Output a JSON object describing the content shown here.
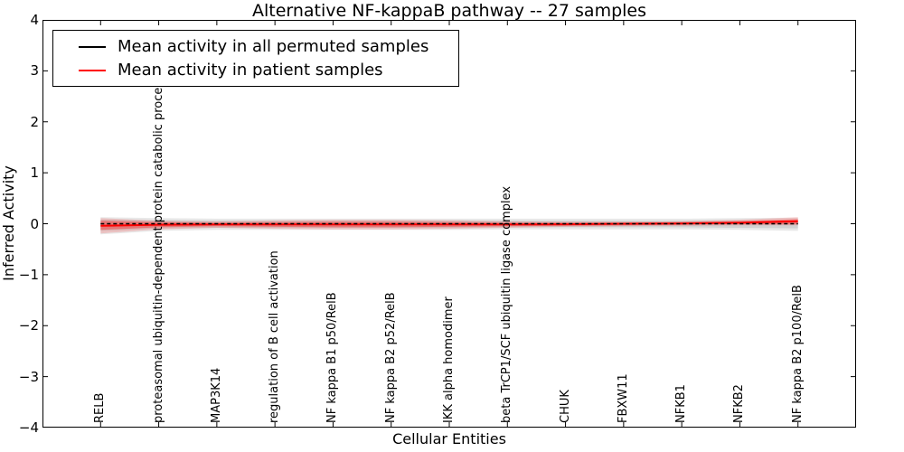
{
  "chart_data": {
    "type": "line",
    "title": "Alternative NF-kappaB pathway -- 27 samples",
    "xlabel": "Cellular Entities",
    "ylabel": "Inferred Activity",
    "ylim": [
      -4,
      4
    ],
    "grid": false,
    "tick_direction": "in",
    "yticks": [
      {
        "value": 4,
        "label": "4"
      },
      {
        "value": 3,
        "label": "3"
      },
      {
        "value": 2,
        "label": "2"
      },
      {
        "value": 1,
        "label": "1"
      },
      {
        "value": 0,
        "label": "0"
      },
      {
        "value": -1,
        "label": "−1"
      },
      {
        "value": -2,
        "label": "−2"
      },
      {
        "value": -3,
        "label": "−3"
      },
      {
        "value": -4,
        "label": "−4"
      }
    ],
    "categories": [
      "RELB",
      "proteasomal ubiquitin-dependent protein catabolic process",
      "MAP3K14",
      "regulation of B cell activation",
      "NF kappa B1 p50/RelB",
      "NF kappa B2 p52/RelB",
      "IKK alpha homodimer",
      "beta TrCP1/SCF ubiquitin ligase complex",
      "CHUK",
      "FBXW11",
      "NFKB1",
      "NFKB2",
      "NF kappa B2 p100/RelB"
    ],
    "series": [
      {
        "name": "Mean activity in all permuted samples",
        "slug": "permuted-mean-line",
        "color": "#000000",
        "line_style": "dashed",
        "values": [
          0,
          0,
          0,
          0,
          0,
          0,
          0,
          0,
          0,
          0,
          0,
          0,
          0
        ]
      },
      {
        "name": "Mean activity in patient samples",
        "slug": "patient-mean-line",
        "color": "#ff0000",
        "line_style": "solid",
        "values": [
          -0.04,
          -0.02,
          -0.015,
          -0.015,
          -0.015,
          -0.015,
          -0.015,
          -0.015,
          -0.01,
          0,
          0.005,
          0.02,
          0.05
        ]
      }
    ],
    "bands": [
      {
        "name": "permuted-std-band-outer",
        "color": "rgba(130,130,130,0.18)",
        "upper": [
          0.13,
          0.11,
          0.1,
          0.1,
          0.1,
          0.1,
          0.1,
          0.1,
          0.1,
          0.1,
          0.1,
          0.11,
          0.12
        ],
        "lower": [
          -0.21,
          -0.14,
          -0.12,
          -0.12,
          -0.12,
          -0.12,
          -0.12,
          -0.11,
          -0.11,
          -0.11,
          -0.11,
          -0.12,
          -0.14
        ]
      },
      {
        "name": "permuted-std-band-inner",
        "color": "rgba(130,130,130,0.22)",
        "upper": [
          0.08,
          0.07,
          0.06,
          0.06,
          0.06,
          0.06,
          0.06,
          0.06,
          0.06,
          0.06,
          0.06,
          0.07,
          0.07
        ],
        "lower": [
          -0.14,
          -0.09,
          -0.08,
          -0.08,
          -0.08,
          -0.08,
          -0.08,
          -0.07,
          -0.07,
          -0.07,
          -0.07,
          -0.08,
          -0.09
        ]
      },
      {
        "name": "patient-std-band-outer",
        "color": "rgba(255,0,0,0.16)",
        "upper": [
          0.11,
          0.06,
          0.05,
          0.07,
          0.08,
          0.08,
          0.07,
          0.05,
          0.04,
          0.04,
          0.05,
          0.08,
          0.13
        ],
        "lower": [
          -0.19,
          -0.11,
          -0.08,
          -0.1,
          -0.11,
          -0.11,
          -0.1,
          -0.08,
          -0.06,
          -0.05,
          -0.04,
          -0.03,
          -0.03
        ]
      },
      {
        "name": "patient-std-band-inner",
        "color": "rgba(255,0,0,0.32)",
        "upper": [
          0.06,
          0.03,
          0.02,
          0.03,
          0.04,
          0.04,
          0.03,
          0.02,
          0.02,
          0.02,
          0.03,
          0.05,
          0.09
        ],
        "lower": [
          -0.12,
          -0.07,
          -0.05,
          -0.06,
          -0.07,
          -0.07,
          -0.06,
          -0.05,
          -0.04,
          -0.03,
          -0.02,
          -0.01,
          -0.01
        ]
      }
    ],
    "legend": {
      "position": "upper-left",
      "entries": [
        {
          "label": "Mean activity in all permuted samples",
          "color": "#000000"
        },
        {
          "label": "Mean activity in patient samples",
          "color": "#ff0000"
        }
      ]
    }
  }
}
